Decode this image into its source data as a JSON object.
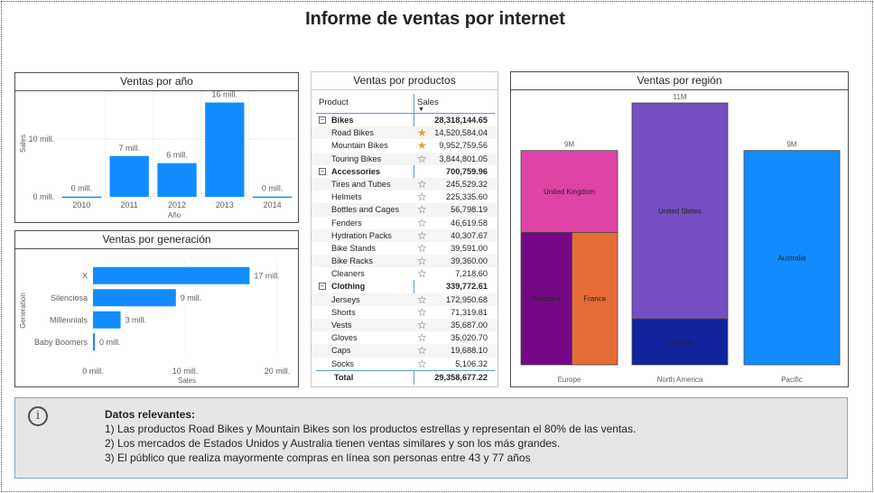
{
  "report": {
    "title": "Informe de ventas por internet"
  },
  "chart_data": [
    {
      "type": "bar",
      "title": "Ventas por año",
      "xlabel": "Año",
      "ylabel": "Sales",
      "categories": [
        "2010",
        "2011",
        "2012",
        "2013",
        "2014"
      ],
      "values": [
        0.04,
        7.08,
        5.84,
        16.35,
        0.05
      ],
      "data_labels": [
        "0 mill.",
        "7 mill.",
        "6 mill.",
        "16 mill.",
        "0 mill."
      ],
      "y_ticks": [
        "0 mill.",
        "10 mill."
      ],
      "ylim": [
        0,
        18
      ],
      "grid": true,
      "color": "#118dff"
    },
    {
      "type": "bar",
      "orientation": "horizontal",
      "title": "Ventas por generación",
      "xlabel": "Sales",
      "ylabel": "Generation",
      "categories": [
        "X",
        "Silenciosa",
        "Millennials",
        "Baby Boomers"
      ],
      "values": [
        17,
        9,
        3,
        0.2
      ],
      "data_labels": [
        "17 mill.",
        "9 mill.",
        "3 mill.",
        "0 mill."
      ],
      "x_ticks": [
        "0 mill.",
        "10 mill.",
        "20 mill."
      ],
      "xlim": [
        0,
        20
      ],
      "color": "#118dff"
    },
    {
      "type": "table",
      "title": "Ventas por productos",
      "columns": [
        "Product",
        "Sales"
      ],
      "groups": [
        {
          "name": "Bikes",
          "total": "28,318,144.65",
          "items": [
            {
              "name": "Road Bikes",
              "value": "14,520,584.04",
              "star": true
            },
            {
              "name": "Mountain Bikes",
              "value": "9,952,759.56",
              "star": true
            },
            {
              "name": "Touring Bikes",
              "value": "3,844,801.05",
              "star": false
            }
          ]
        },
        {
          "name": "Accessories",
          "total": "700,759.96",
          "items": [
            {
              "name": "Tires and Tubes",
              "value": "245,529.32",
              "star": false
            },
            {
              "name": "Helmets",
              "value": "225,335.60",
              "star": false
            },
            {
              "name": "Bottles and Cages",
              "value": "56,798.19",
              "star": false
            },
            {
              "name": "Fenders",
              "value": "46,619.58",
              "star": false
            },
            {
              "name": "Hydration Packs",
              "value": "40,307.67",
              "star": false
            },
            {
              "name": "Bike Stands",
              "value": "39,591.00",
              "star": false
            },
            {
              "name": "Bike Racks",
              "value": "39,360.00",
              "star": false
            },
            {
              "name": "Cleaners",
              "value": "7,218.60",
              "star": false
            }
          ]
        },
        {
          "name": "Clothing",
          "total": "339,772.61",
          "items": [
            {
              "name": "Jerseys",
              "value": "172,950.68",
              "star": false
            },
            {
              "name": "Shorts",
              "value": "71,319.81",
              "star": false
            },
            {
              "name": "Vests",
              "value": "35,687.00",
              "star": false
            },
            {
              "name": "Gloves",
              "value": "35,020.70",
              "star": false
            },
            {
              "name": "Caps",
              "value": "19,688.10",
              "star": false
            },
            {
              "name": "Socks",
              "value": "5,106.32",
              "star": false
            }
          ]
        }
      ],
      "total_label": "Total",
      "grand_total": "29,358,677.22"
    },
    {
      "type": "bar",
      "subtype": "stacked-column",
      "title": "Ventas por región",
      "categories": [
        "Europe",
        "North America",
        "Pacific"
      ],
      "column_totals": [
        9,
        11,
        9
      ],
      "total_labels": [
        "9M",
        "11M",
        "9M"
      ],
      "segments": [
        {
          "group": "Europe",
          "name": "United Kingdom",
          "value": 3.4,
          "color": "#e044a7"
        },
        {
          "group": "Europe",
          "name": "Germany",
          "value": 2.9,
          "color": "#750985"
        },
        {
          "group": "Europe",
          "name": "France",
          "value": 2.6,
          "color": "#e66c37"
        },
        {
          "group": "North America",
          "name": "United States",
          "value": 9.4,
          "color": "#744ec2"
        },
        {
          "group": "North America",
          "name": "Canada",
          "value": 2.0,
          "color": "#12239e"
        },
        {
          "group": "Pacific",
          "name": "Australia",
          "value": 9.1,
          "color": "#118dff"
        }
      ]
    }
  ],
  "info": {
    "heading": "Datos relevantes:",
    "lines": [
      "1) Las productos Road Bikes y Mountain Bikes son los productos estrellas y representan el 80% de las ventas.",
      "2) Los mercados de Estados Unidos y Australia tienen ventas similares y son los más grandes.",
      "3) El público que realiza mayormente compras en línea son personas entre 43 y 77 años"
    ]
  }
}
